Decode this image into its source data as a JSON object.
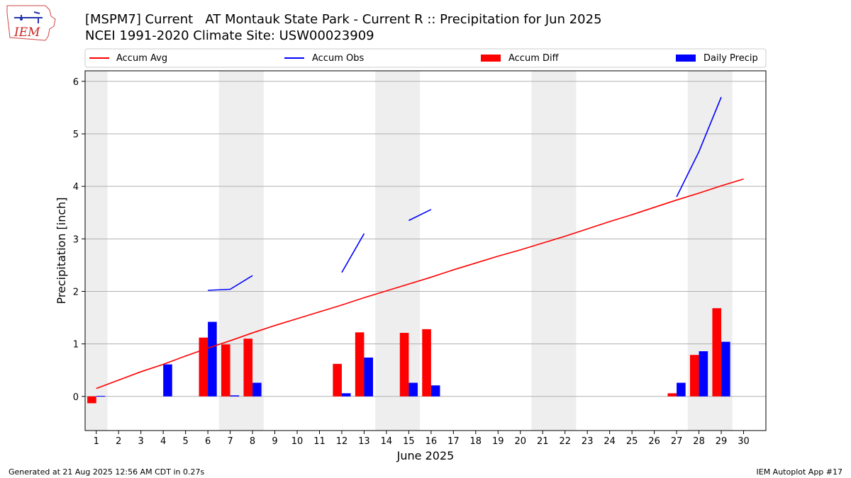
{
  "title_line1": "[MSPM7] Current   AT Montauk State Park - Current R :: Precipitation for Jun 2025",
  "title_line2": "NCEI 1991-2020 Climate Site: USW00023909",
  "logo_text": "IEM",
  "footer_left": "Generated at 21 Aug 2025 12:56 AM CDT in 0.27s",
  "footer_right": "IEM Autoplot App #17",
  "colors": {
    "avg": "#ff0000",
    "obs": "#0000ff",
    "diff": "#ff0000",
    "daily": "#0000ff",
    "shade": "#eeeeee",
    "grid": "#b0b0b0"
  },
  "chart_data": {
    "type": "bar",
    "xlabel": "June 2025",
    "ylabel": "Precipitation [inch]",
    "xlim": [
      0.5,
      31.0
    ],
    "ylim": [
      -0.65,
      6.2
    ],
    "yticks": [
      0,
      1,
      2,
      3,
      4,
      5,
      6
    ],
    "x_ticks": [
      "1",
      "2",
      "3",
      "4",
      "5",
      "6",
      "7",
      "8",
      "9",
      "10",
      "11",
      "12",
      "13",
      "14",
      "15",
      "16",
      "17",
      "18",
      "19",
      "20",
      "21",
      "22",
      "23",
      "24",
      "25",
      "26",
      "27",
      "28",
      "29",
      "30"
    ],
    "grid": "y",
    "legend": {
      "placement": "top",
      "entries": [
        "Accum Avg",
        "Accum Obs",
        "Accum Diff",
        "Daily Precip"
      ]
    },
    "weekend_shading": [
      [
        0.5,
        1.5
      ],
      [
        6.5,
        8.5
      ],
      [
        13.5,
        15.5
      ],
      [
        20.5,
        22.5
      ],
      [
        27.5,
        29.5
      ]
    ],
    "series": [
      {
        "name": "Accum Avg",
        "kind": "line",
        "x": [
          1,
          2,
          3,
          4,
          5,
          6,
          7,
          8,
          9,
          10,
          11,
          12,
          13,
          14,
          15,
          16,
          17,
          18,
          19,
          20,
          21,
          22,
          23,
          24,
          25,
          26,
          27,
          28,
          29,
          30
        ],
        "values": [
          0.15,
          0.31,
          0.47,
          0.61,
          0.77,
          0.92,
          1.06,
          1.21,
          1.35,
          1.48,
          1.61,
          1.74,
          1.88,
          2.01,
          2.14,
          2.27,
          2.41,
          2.54,
          2.67,
          2.79,
          2.92,
          3.05,
          3.19,
          3.33,
          3.46,
          3.6,
          3.74,
          3.87,
          4.01,
          4.14
        ]
      },
      {
        "name": "Accum Obs",
        "kind": "line",
        "segments": [
          {
            "x": [
              6,
              7,
              8
            ],
            "values": [
              2.02,
              2.04,
              2.3
            ]
          },
          {
            "x": [
              12,
              13
            ],
            "values": [
              2.36,
              3.1
            ]
          },
          {
            "x": [
              15,
              16
            ],
            "values": [
              3.35,
              3.56
            ]
          },
          {
            "x": [
              27,
              28,
              29
            ],
            "values": [
              3.8,
              4.66,
              5.7
            ]
          }
        ]
      },
      {
        "name": "Accum Diff",
        "kind": "bar",
        "x": [
          1,
          6,
          7,
          8,
          12,
          13,
          15,
          16,
          27,
          28,
          29
        ],
        "values": [
          -0.13,
          1.12,
          0.99,
          1.1,
          0.62,
          1.22,
          1.21,
          1.28,
          0.06,
          0.79,
          1.68
        ]
      },
      {
        "name": "Daily Precip",
        "kind": "bar",
        "x": [
          1,
          4,
          6,
          7,
          8,
          12,
          13,
          15,
          16,
          27,
          28,
          29
        ],
        "values": [
          0.01,
          0.61,
          1.42,
          0.02,
          0.26,
          0.06,
          0.74,
          0.26,
          0.21,
          0.26,
          0.86,
          1.04
        ]
      }
    ]
  }
}
